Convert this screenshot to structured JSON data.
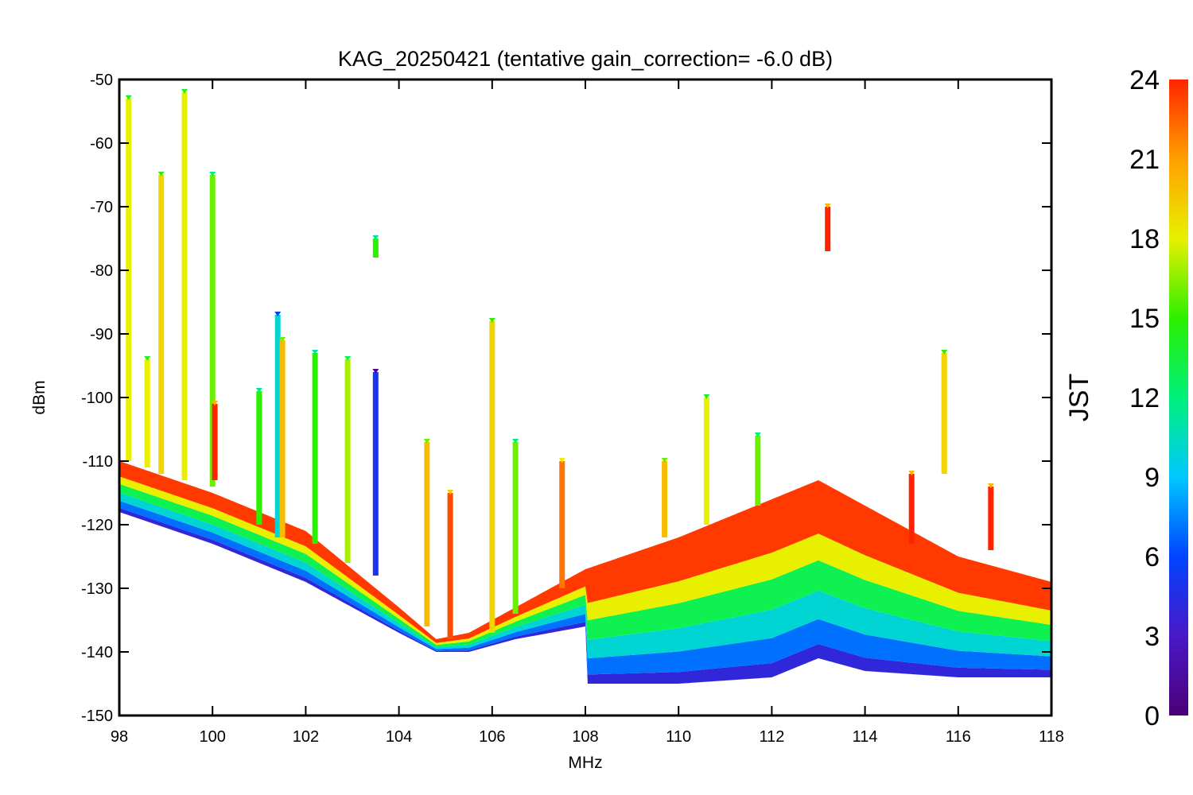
{
  "chart_data": {
    "type": "scatter",
    "title": "KAG_20250421 (tentative gain_correction= -6.0 dB)",
    "xlabel": "MHz",
    "ylabel": "dBm",
    "xlim": [
      98,
      118
    ],
    "ylim": [
      -150,
      -50
    ],
    "x_ticks": [
      98,
      100,
      102,
      104,
      106,
      108,
      110,
      112,
      114,
      116,
      118
    ],
    "y_ticks": [
      -50,
      -60,
      -70,
      -80,
      -90,
      -100,
      -110,
      -120,
      -130,
      -140,
      -150
    ],
    "colorbar": {
      "label": "JST",
      "range": [
        0,
        24
      ],
      "ticks": [
        0,
        3,
        6,
        9,
        12,
        15,
        18,
        21,
        24
      ],
      "colormap": "rainbow"
    },
    "noise_floor_upper": [
      [
        98,
        -110
      ],
      [
        100,
        -115
      ],
      [
        102,
        -121
      ],
      [
        104,
        -133
      ],
      [
        104.8,
        -138
      ],
      [
        105.5,
        -137
      ],
      [
        106.5,
        -133
      ],
      [
        108,
        -127
      ],
      [
        110,
        -122
      ],
      [
        112,
        -116
      ],
      [
        113,
        -113
      ],
      [
        114,
        -117
      ],
      [
        116,
        -125
      ],
      [
        118,
        -129
      ]
    ],
    "noise_floor_lower": [
      [
        98,
        -118
      ],
      [
        100,
        -123
      ],
      [
        102,
        -129
      ],
      [
        104,
        -137
      ],
      [
        104.8,
        -140
      ],
      [
        105.5,
        -140
      ],
      [
        106.5,
        -138
      ],
      [
        108,
        -136
      ],
      [
        108.05,
        -145
      ],
      [
        110,
        -145
      ],
      [
        112,
        -144
      ],
      [
        113,
        -141
      ],
      [
        114,
        -143
      ],
      [
        116,
        -144
      ],
      [
        118,
        -144
      ]
    ],
    "signals": [
      {
        "x": 98.2,
        "top": -53,
        "bottom": -110,
        "hour": 18
      },
      {
        "x": 98.6,
        "top": -94,
        "bottom": -111,
        "hour": 18
      },
      {
        "x": 98.9,
        "top": -65,
        "bottom": -112,
        "hour": 19
      },
      {
        "x": 99.4,
        "top": -52,
        "bottom": -113,
        "hour": 18
      },
      {
        "x": 100.0,
        "top": -65,
        "bottom": -114,
        "hour": 16
      },
      {
        "x": 100.05,
        "top": -101,
        "bottom": -113,
        "hour": 24
      },
      {
        "x": 101.0,
        "top": -99,
        "bottom": -120,
        "hour": 15
      },
      {
        "x": 101.4,
        "top": -87,
        "bottom": -122,
        "hour": 10
      },
      {
        "x": 101.5,
        "top": -91,
        "bottom": -122,
        "hour": 20
      },
      {
        "x": 102.2,
        "top": -93,
        "bottom": -123,
        "hour": 15
      },
      {
        "x": 102.9,
        "top": -94,
        "bottom": -126,
        "hour": 17
      },
      {
        "x": 103.5,
        "top": -96,
        "bottom": -128,
        "hour": 5
      },
      {
        "x": 103.5,
        "top": -75,
        "bottom": -78,
        "hour": 15
      },
      {
        "x": 104.6,
        "top": -107,
        "bottom": -136,
        "hour": 20
      },
      {
        "x": 105.1,
        "top": -115,
        "bottom": -138,
        "hour": 23
      },
      {
        "x": 106.0,
        "top": -88,
        "bottom": -137,
        "hour": 19
      },
      {
        "x": 106.5,
        "top": -107,
        "bottom": -134,
        "hour": 16
      },
      {
        "x": 107.5,
        "top": -110,
        "bottom": -130,
        "hour": 22
      },
      {
        "x": 109.7,
        "top": -110,
        "bottom": -122,
        "hour": 20
      },
      {
        "x": 110.6,
        "top": -100,
        "bottom": -120,
        "hour": 18
      },
      {
        "x": 111.7,
        "top": -106,
        "bottom": -117,
        "hour": 16
      },
      {
        "x": 113.2,
        "top": -70,
        "bottom": -77,
        "hour": 24
      },
      {
        "x": 115.0,
        "top": -112,
        "bottom": -123,
        "hour": 24
      },
      {
        "x": 115.7,
        "top": -93,
        "bottom": -112,
        "hour": 19
      },
      {
        "x": 116.7,
        "top": -114,
        "bottom": -124,
        "hour": 24
      }
    ]
  }
}
